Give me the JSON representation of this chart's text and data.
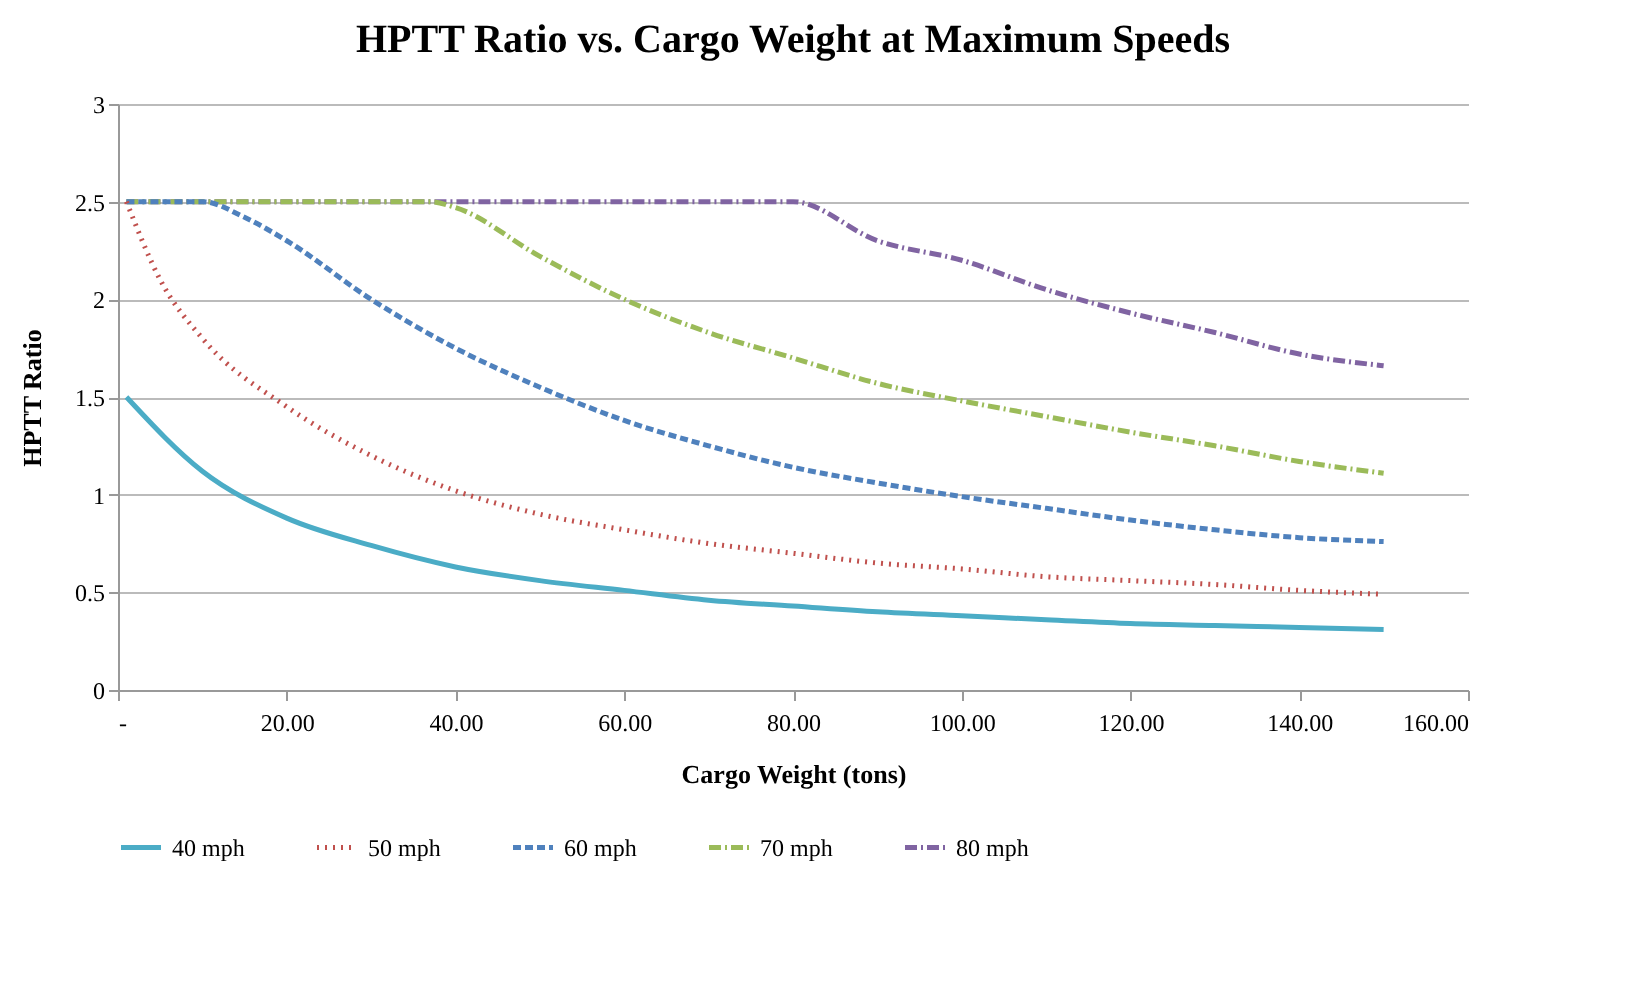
{
  "chart_data": {
    "type": "line",
    "title": "HPTT Ratio vs. Cargo Weight at Maximum Speeds",
    "xlabel": "Cargo Weight (tons)",
    "ylabel": "HPTT Ratio",
    "xlim": [
      0,
      160
    ],
    "xticks": [
      {
        "value": 0,
        "label": "-"
      },
      {
        "value": 20,
        "label": "20.00"
      },
      {
        "value": 40,
        "label": "40.00"
      },
      {
        "value": 60,
        "label": "60.00"
      },
      {
        "value": 80,
        "label": "80.00"
      },
      {
        "value": 100,
        "label": "100.00"
      },
      {
        "value": 120,
        "label": "120.00"
      },
      {
        "value": 140,
        "label": "140.00"
      },
      {
        "value": 160,
        "label": "160.00"
      }
    ],
    "ylim": [
      0,
      3
    ],
    "yticks": [
      0,
      0.5,
      1,
      1.5,
      2,
      2.5,
      3
    ],
    "grid": "y",
    "legend": "bottom",
    "marker": "none",
    "series": [
      {
        "name": "40 mph",
        "color": "#4bacc6",
        "line_style": "solid",
        "x": [
          1,
          10,
          20,
          30,
          40,
          50,
          60,
          70,
          80,
          90,
          100,
          110,
          120,
          130,
          140,
          150
        ],
        "values": [
          1.5,
          1.12,
          0.88,
          0.74,
          0.63,
          0.56,
          0.51,
          0.46,
          0.43,
          0.4,
          0.38,
          0.36,
          0.34,
          0.33,
          0.32,
          0.31
        ]
      },
      {
        "name": "50 mph",
        "color": "#c0504d",
        "line_style": "dotted",
        "x": [
          1,
          5,
          10,
          20,
          30,
          40,
          50,
          60,
          70,
          80,
          90,
          100,
          110,
          120,
          130,
          140,
          150
        ],
        "values": [
          2.5,
          2.1,
          1.8,
          1.45,
          1.2,
          1.02,
          0.9,
          0.82,
          0.75,
          0.7,
          0.65,
          0.62,
          0.58,
          0.56,
          0.54,
          0.51,
          0.49
        ]
      },
      {
        "name": "60 mph",
        "color": "#4f81bd",
        "line_style": "dashed",
        "x": [
          1,
          10,
          15,
          20,
          30,
          40,
          50,
          60,
          70,
          80,
          90,
          100,
          110,
          120,
          130,
          140,
          150
        ],
        "values": [
          2.5,
          2.5,
          2.42,
          2.3,
          2.0,
          1.75,
          1.55,
          1.38,
          1.25,
          1.14,
          1.06,
          0.99,
          0.93,
          0.87,
          0.82,
          0.78,
          0.76
        ]
      },
      {
        "name": "70 mph",
        "color": "#9bbb59",
        "line_style": "dashdot",
        "x": [
          1,
          37,
          40,
          50,
          60,
          70,
          80,
          90,
          100,
          110,
          120,
          130,
          140,
          150
        ],
        "values": [
          2.5,
          2.5,
          2.47,
          2.22,
          2.0,
          1.83,
          1.7,
          1.57,
          1.48,
          1.4,
          1.32,
          1.25,
          1.17,
          1.11
        ]
      },
      {
        "name": "80 mph",
        "color": "#8064a2",
        "line_style": "dashdot",
        "x": [
          1,
          80,
          90,
          100,
          110,
          120,
          130,
          140,
          150
        ],
        "values": [
          2.5,
          2.5,
          2.3,
          2.2,
          2.05,
          1.93,
          1.83,
          1.72,
          1.66
        ]
      }
    ]
  }
}
